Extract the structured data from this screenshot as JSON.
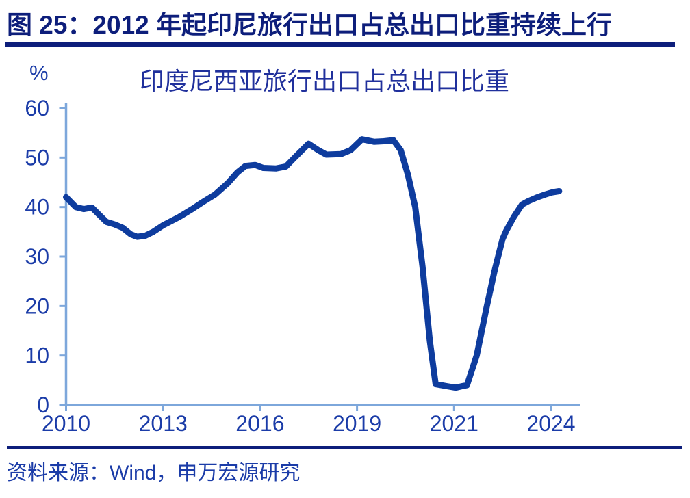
{
  "header": {
    "figure_label": "图 25：2012 年起印尼旅行出口占总出口比重持续上行"
  },
  "chart_data": {
    "type": "line",
    "title": "印度尼西亚旅行出口占总出口比重",
    "ylabel": "%",
    "xlabel": "",
    "ylim": [
      0,
      60
    ],
    "yticks": [
      0,
      10,
      20,
      30,
      40,
      50,
      60
    ],
    "xtick_labels": [
      "2010",
      "2013",
      "2016",
      "2019",
      "2021",
      "2024"
    ],
    "xtick_years": [
      2010,
      2013,
      2016,
      2019,
      2021,
      2024
    ],
    "xtick_spacing": "equal",
    "grid": false,
    "legend_position": "none",
    "series": [
      {
        "name": "印度尼西亚旅行出口占总出口比重",
        "points": [
          [
            2010.0,
            42.0
          ],
          [
            2010.3,
            40.0
          ],
          [
            2010.55,
            39.6
          ],
          [
            2010.8,
            39.9
          ],
          [
            2011.0,
            38.6
          ],
          [
            2011.25,
            37.0
          ],
          [
            2011.5,
            36.5
          ],
          [
            2011.75,
            35.8
          ],
          [
            2012.0,
            34.5
          ],
          [
            2012.2,
            34.0
          ],
          [
            2012.45,
            34.2
          ],
          [
            2012.7,
            35.0
          ],
          [
            2013.0,
            36.3
          ],
          [
            2013.5,
            38.0
          ],
          [
            2013.9,
            39.6
          ],
          [
            2014.2,
            40.9
          ],
          [
            2014.6,
            42.5
          ],
          [
            2015.0,
            44.8
          ],
          [
            2015.3,
            47.0
          ],
          [
            2015.55,
            48.3
          ],
          [
            2015.85,
            48.5
          ],
          [
            2016.1,
            47.9
          ],
          [
            2016.5,
            47.8
          ],
          [
            2016.8,
            48.2
          ],
          [
            2017.1,
            50.2
          ],
          [
            2017.5,
            52.8
          ],
          [
            2017.8,
            51.5
          ],
          [
            2018.05,
            50.6
          ],
          [
            2018.5,
            50.7
          ],
          [
            2018.8,
            51.5
          ],
          [
            2019.1,
            53.7
          ],
          [
            2019.35,
            53.2
          ],
          [
            2019.55,
            53.3
          ],
          [
            2019.75,
            53.5
          ],
          [
            2019.9,
            51.5
          ],
          [
            2020.05,
            46.5
          ],
          [
            2020.2,
            40.0
          ],
          [
            2020.35,
            28.0
          ],
          [
            2020.5,
            13.0
          ],
          [
            2020.62,
            4.2
          ],
          [
            2020.85,
            3.8
          ],
          [
            2021.05,
            3.5
          ],
          [
            2021.25,
            3.8
          ],
          [
            2021.4,
            4.0
          ],
          [
            2021.7,
            10.0
          ],
          [
            2022.0,
            19.5
          ],
          [
            2022.25,
            27.0
          ],
          [
            2022.5,
            33.5
          ],
          [
            2022.62,
            35.3
          ],
          [
            2022.85,
            38.0
          ],
          [
            2023.1,
            40.5
          ],
          [
            2023.3,
            41.2
          ],
          [
            2023.55,
            41.9
          ],
          [
            2023.8,
            42.5
          ],
          [
            2024.05,
            43.0
          ],
          [
            2024.25,
            43.2
          ]
        ]
      }
    ]
  },
  "footer": {
    "source": "资料来源：Wind，申万宏源研究"
  },
  "colors": {
    "header_navy": "#0D1E7B",
    "label_blue": "#1B3CA8",
    "chart_title_blue": "#20309C",
    "line_blue": "#0E3C9E",
    "axis_blue": "#7DA7DB",
    "background": "#FFFFFF"
  }
}
